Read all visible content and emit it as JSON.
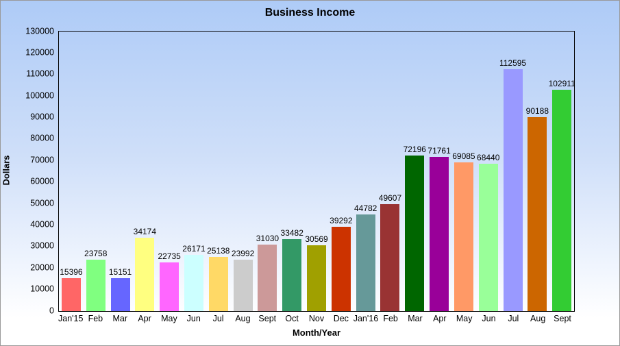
{
  "chart_data": {
    "type": "bar",
    "title": "Business Income",
    "xlabel": "Month/Year",
    "ylabel": "Dollars",
    "ylim": [
      0,
      130000
    ],
    "y_tick_step": 10000,
    "grid": false,
    "legend": "none",
    "categories": [
      "Jan'15",
      "Feb",
      "Mar",
      "Apr",
      "May",
      "Jun",
      "Jul",
      "Aug",
      "Sept",
      "Oct",
      "Nov",
      "Dec",
      "Jan'16",
      "Feb",
      "Mar",
      "Apr",
      "May",
      "Jun",
      "Jul",
      "Aug",
      "Sept"
    ],
    "values": [
      15396,
      23758,
      15151,
      34174,
      22735,
      26171,
      25138,
      23992,
      31030,
      33482,
      30569,
      39292,
      44782,
      49607,
      72196,
      71761,
      69085,
      68440,
      112595,
      90188,
      102911
    ],
    "bar_colors": [
      "#FF6666",
      "#80FF80",
      "#6666FF",
      "#FFFF80",
      "#FF66FF",
      "#CCFFFF",
      "#FFD966",
      "#CCCCCC",
      "#CC9999",
      "#339966",
      "#A0A000",
      "#CC3300",
      "#669999",
      "#993333",
      "#006600",
      "#990099",
      "#FF9966",
      "#99FF99",
      "#9999FF",
      "#CC6600",
      "#33CC33"
    ],
    "background_gradient_top": "#AECBF7",
    "background_gradient_bottom": "#FFFFFF",
    "plot_border_color": "#000000",
    "outer_border_color": "#999999"
  }
}
